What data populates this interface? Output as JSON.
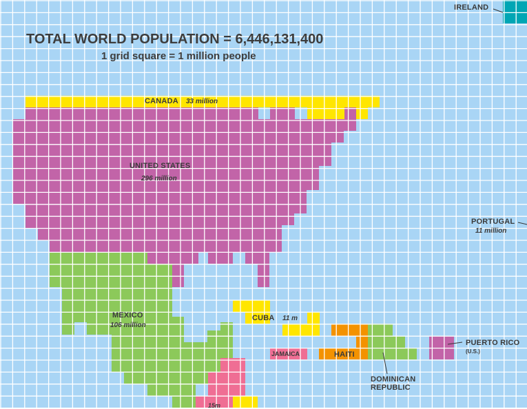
{
  "title": "TOTAL WORLD POPULATION = 6,446,131,400",
  "subtitle": "1 grid square = 1 million people",
  "colors": {
    "ocean": "#a9d5f5",
    "grid": "#ffffff",
    "canada": "#ffe600",
    "usa": "#c264a8",
    "mexico": "#8cc95a",
    "cuba": "#ffe600",
    "haiti": "#f39200",
    "dominican_republic": "#8cc95a",
    "puerto_rico": "#c264a8",
    "jamaica": "#ef6e94",
    "guatemala": "#ef6e94",
    "ireland": "#00a6b4"
  },
  "labels": {
    "ireland": "IRELAND",
    "canada": "CANADA",
    "canada_pop": "33 million",
    "usa": "UNITED STATES",
    "usa_pop": "296 million",
    "portugal": "PORTUGAL",
    "portugal_pop": "11 million",
    "mexico": "MEXICO",
    "mexico_pop": "106 million",
    "cuba": "CUBA",
    "cuba_pop": "11 m",
    "jamaica": "JAMAICA",
    "haiti": "HAITI",
    "dominican_line1": "DOMINICAN",
    "dominican_line2": "REPUBLIC",
    "puerto_rico": "PUERTO RICO",
    "puerto_rico_note": "(U.S.)",
    "guatemala_pop": "15m"
  }
}
